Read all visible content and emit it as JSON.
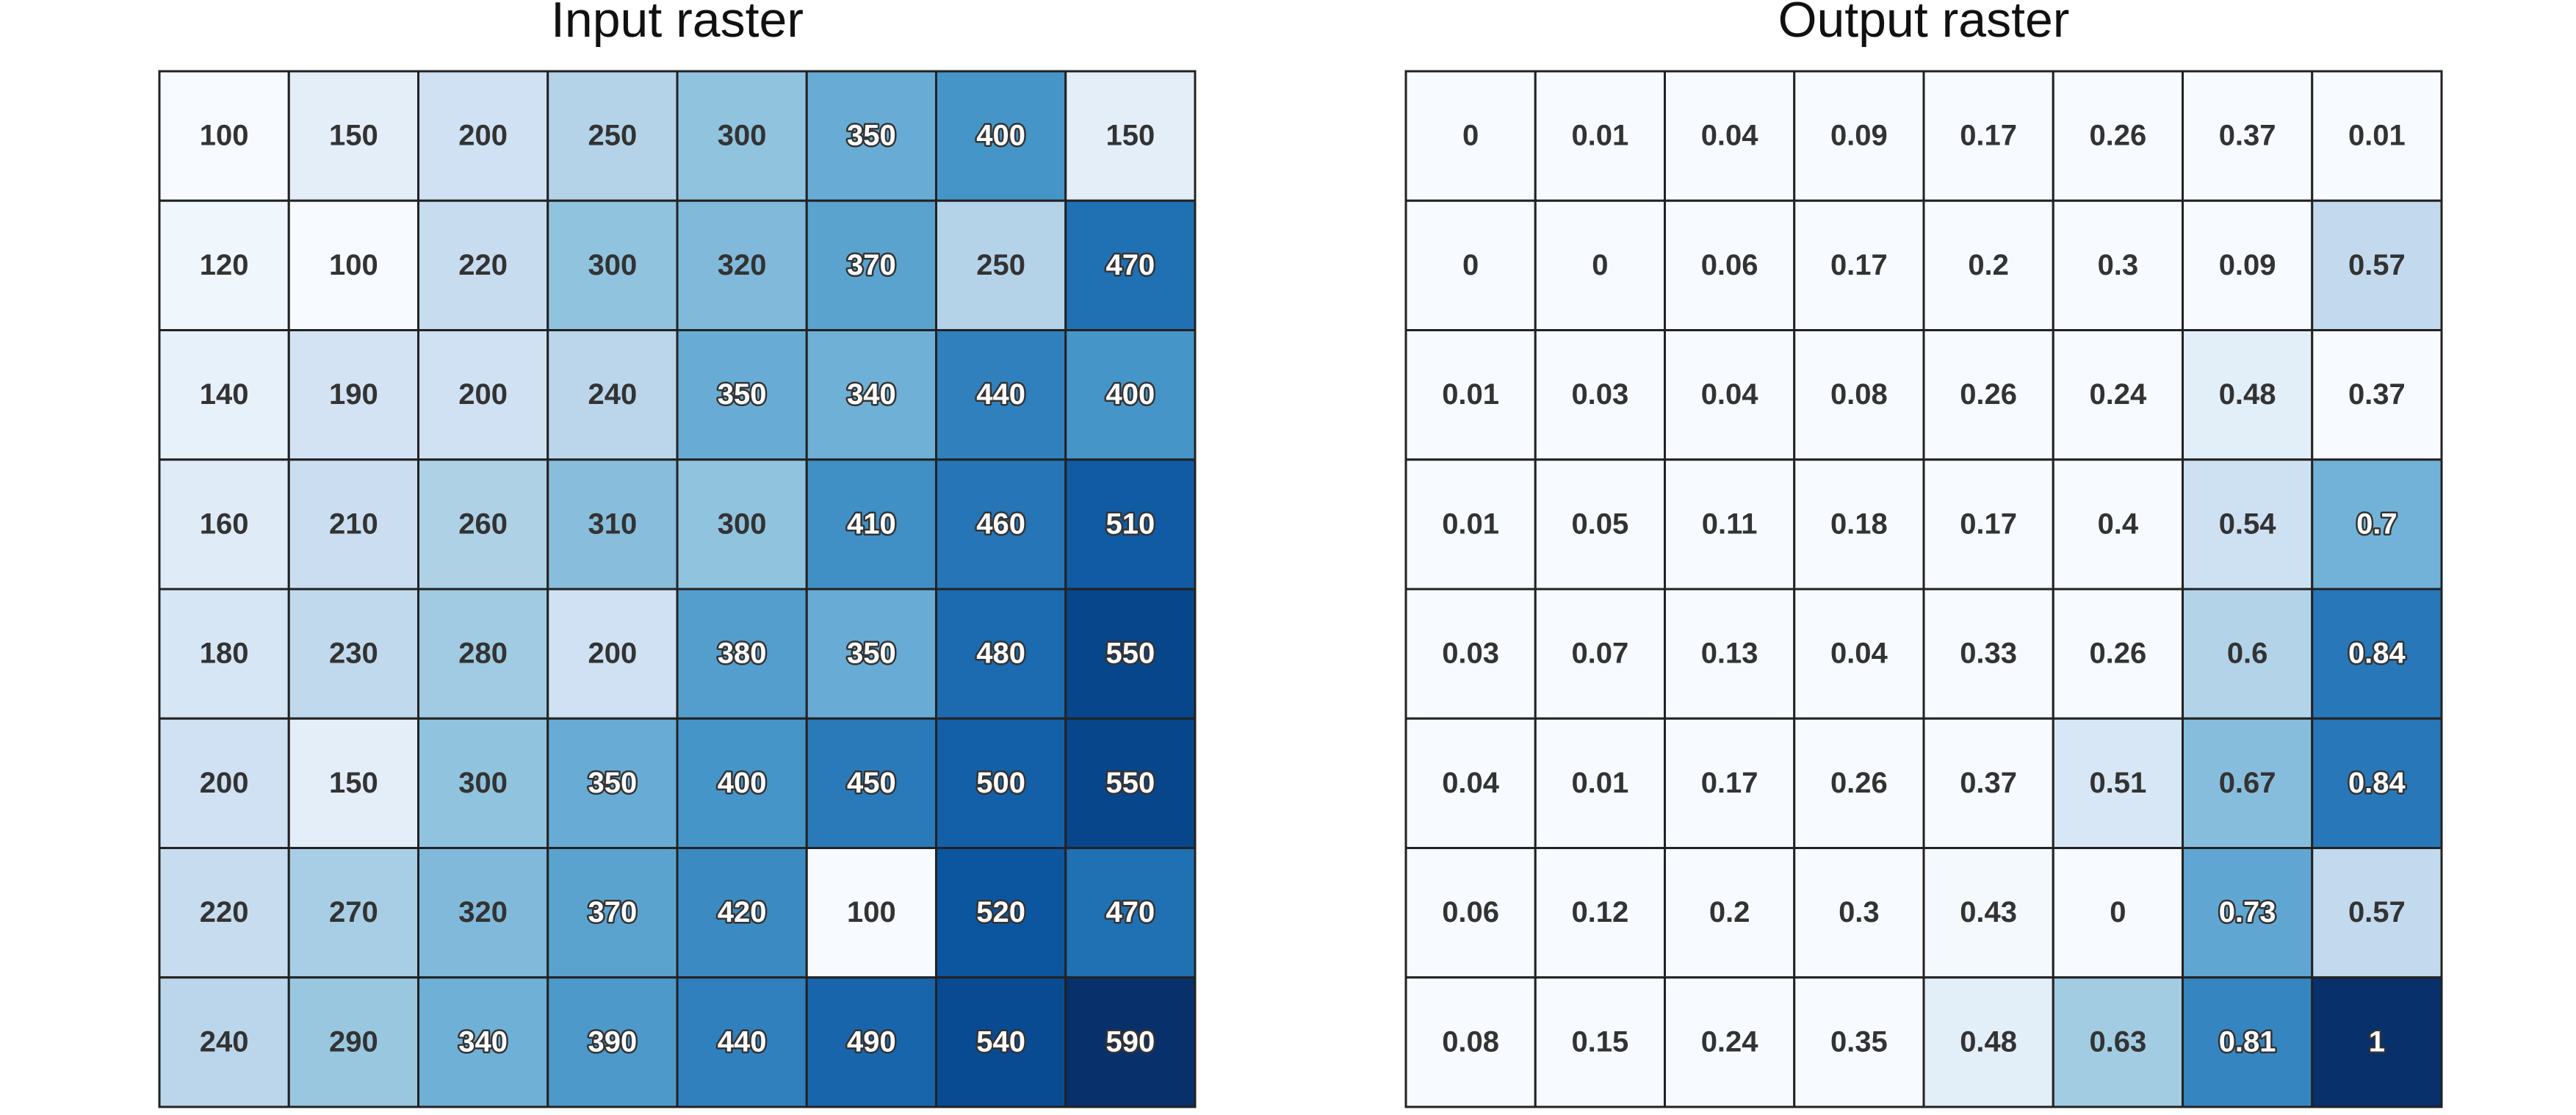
{
  "chart_data": [
    {
      "type": "heatmap",
      "title": "Input raster",
      "colormap": "Blues",
      "color_range": [
        100,
        590
      ],
      "values": [
        [
          100,
          150,
          200,
          250,
          300,
          350,
          400,
          150
        ],
        [
          120,
          100,
          220,
          300,
          320,
          370,
          250,
          470
        ],
        [
          140,
          190,
          200,
          240,
          350,
          340,
          440,
          400
        ],
        [
          160,
          210,
          260,
          310,
          300,
          410,
          460,
          510
        ],
        [
          180,
          230,
          280,
          200,
          380,
          350,
          480,
          550
        ],
        [
          200,
          150,
          300,
          350,
          400,
          450,
          500,
          550
        ],
        [
          220,
          270,
          320,
          370,
          420,
          100,
          520,
          470
        ],
        [
          240,
          290,
          340,
          390,
          440,
          490,
          540,
          590
        ]
      ]
    },
    {
      "type": "heatmap",
      "title": "Output raster",
      "colormap": "Blues",
      "color_range": [
        0.42,
        1
      ],
      "values": [
        [
          0,
          0.01,
          0.04,
          0.09,
          0.17,
          0.26,
          0.37,
          0.01
        ],
        [
          0,
          0,
          0.06,
          0.17,
          0.2,
          0.3,
          0.09,
          0.57
        ],
        [
          0.01,
          0.03,
          0.04,
          0.08,
          0.26,
          0.24,
          0.48,
          0.37
        ],
        [
          0.01,
          0.05,
          0.11,
          0.18,
          0.17,
          0.4,
          0.54,
          0.7
        ],
        [
          0.03,
          0.07,
          0.13,
          0.04,
          0.33,
          0.26,
          0.6,
          0.84
        ],
        [
          0.04,
          0.01,
          0.17,
          0.26,
          0.37,
          0.51,
          0.67,
          0.84
        ],
        [
          0.06,
          0.12,
          0.2,
          0.3,
          0.43,
          0,
          0.73,
          0.57
        ],
        [
          0.08,
          0.15,
          0.24,
          0.35,
          0.48,
          0.63,
          0.81,
          1
        ]
      ]
    }
  ]
}
